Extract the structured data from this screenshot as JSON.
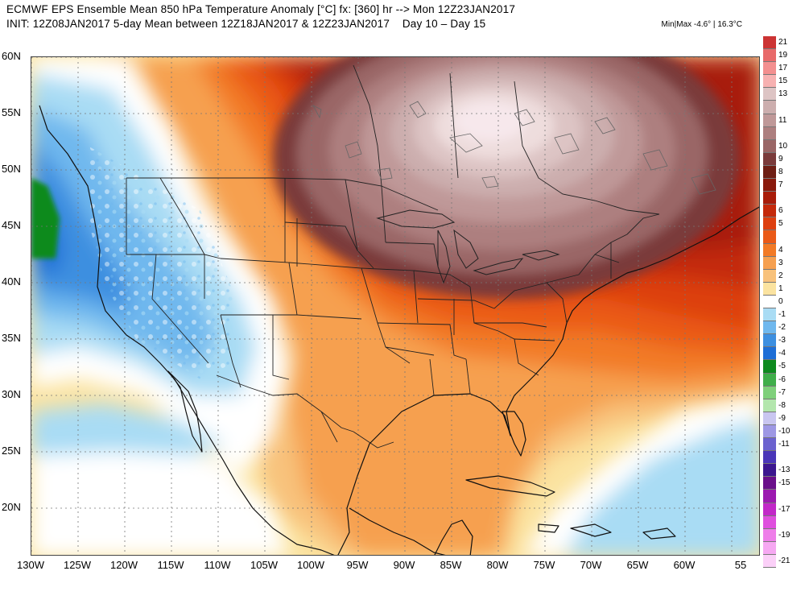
{
  "header": {
    "title": "ECMWF EPS Ensemble Mean 850 hPa Temperature Anomaly [°C] fx: [360] hr --> Mon 12Z23JAN2017",
    "init": "INIT: 12Z08JAN2017 5-day Mean between 12Z18JAN2017 & 12Z23JAN2017    Day 10 – Day 15",
    "minmax": "Min|Max -4.6° | 16.3°C"
  },
  "map": {
    "lat_labels": [
      "60N",
      "55N",
      "50N",
      "45N",
      "40N",
      "35N",
      "30N",
      "25N",
      "20N"
    ],
    "lon_labels": [
      "130W",
      "125W",
      "120W",
      "115W",
      "110W",
      "105W",
      "100W",
      "95W",
      "90W",
      "85W",
      "80W",
      "75W",
      "70W",
      "65W",
      "60W",
      "55"
    ]
  },
  "legend": {
    "entries": [
      {
        "label": "21",
        "color": "#cc3333"
      },
      {
        "label": "19",
        "color": "#e86a6a"
      },
      {
        "label": "17",
        "color": "#f38f8f"
      },
      {
        "label": "15",
        "color": "#f7b1b1"
      },
      {
        "label": "13",
        "color": "#ddc4c4"
      },
      {
        "label": "",
        "color": "#ccaeae"
      },
      {
        "label": "11",
        "color": "#bf9898"
      },
      {
        "label": "",
        "color": "#ad7f7f"
      },
      {
        "label": "10",
        "color": "#9a6666"
      },
      {
        "label": "9",
        "color": "#7a3b3b"
      },
      {
        "label": "8",
        "color": "#6e1e14"
      },
      {
        "label": "7",
        "color": "#8a1a0c"
      },
      {
        "label": "",
        "color": "#a81c0a"
      },
      {
        "label": "6",
        "color": "#c4290b"
      },
      {
        "label": "5",
        "color": "#dd3f10"
      },
      {
        "label": "",
        "color": "#ea5a18"
      },
      {
        "label": "4",
        "color": "#f27a26"
      },
      {
        "label": "3",
        "color": "#f6a050"
      },
      {
        "label": "2",
        "color": "#f8c27c"
      },
      {
        "label": "1",
        "color": "#fbe3a0"
      },
      {
        "label": "0",
        "color": "#ffffff"
      },
      {
        "label": "-1",
        "color": "#a9dcf4"
      },
      {
        "label": "-2",
        "color": "#6fb8ee"
      },
      {
        "label": "-3",
        "color": "#3d8fe0"
      },
      {
        "label": "-4",
        "color": "#1e6ed6"
      },
      {
        "label": "-5",
        "color": "#0d8a1e"
      },
      {
        "label": "-6",
        "color": "#3fae4a"
      },
      {
        "label": "-7",
        "color": "#7fd07b"
      },
      {
        "label": "-8",
        "color": "#b3e6ad"
      },
      {
        "label": "-9",
        "color": "#c9c6f0"
      },
      {
        "label": "-10",
        "color": "#9e98e4"
      },
      {
        "label": "-11",
        "color": "#6b62cf"
      },
      {
        "label": "",
        "color": "#4a36b8"
      },
      {
        "label": "-13",
        "color": "#3c178f"
      },
      {
        "label": "-15",
        "color": "#6a0f8a"
      },
      {
        "label": "",
        "color": "#9c1ab0"
      },
      {
        "label": "-17",
        "color": "#c228c8"
      },
      {
        "label": "",
        "color": "#df4fde"
      },
      {
        "label": "-19",
        "color": "#ee7ee9"
      },
      {
        "label": "",
        "color": "#f6a8f2"
      },
      {
        "label": "-21",
        "color": "#fbd0f8"
      }
    ]
  }
}
